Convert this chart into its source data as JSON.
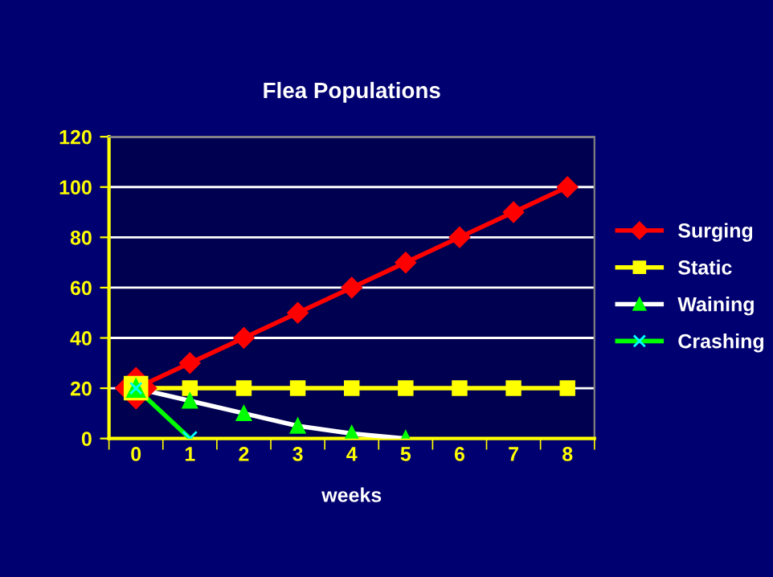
{
  "chart_data": {
    "type": "line",
    "title": "Flea Populations",
    "xlabel": "weeks",
    "categories": [
      "0",
      "1",
      "2",
      "3",
      "4",
      "5",
      "6",
      "7",
      "8"
    ],
    "ylim": [
      0,
      120
    ],
    "yticks": [
      0,
      20,
      40,
      60,
      80,
      100,
      120
    ],
    "grid": "y",
    "legend": "right",
    "series": [
      {
        "name": "Surging",
        "color": "#ff0000",
        "marker": "diamond",
        "values": [
          20,
          30,
          40,
          50,
          60,
          70,
          80,
          90,
          100
        ]
      },
      {
        "name": "Static",
        "color": "#ffff00",
        "marker": "square",
        "values": [
          20,
          20,
          20,
          20,
          20,
          20,
          20,
          20,
          20
        ]
      },
      {
        "name": "Waining",
        "color": "#ffffff",
        "colors": [
          "#00ff00",
          "#00ff00",
          "#00ff00",
          "#00ff00",
          "#00ff00",
          "#00ff00",
          null,
          null,
          null
        ],
        "marker": "triangle",
        "values": [
          20,
          15,
          10,
          5,
          2,
          0,
          null,
          null,
          null
        ]
      },
      {
        "name": "Crashing",
        "color": "#00ff00",
        "colors": [
          "#00ffff",
          "#00ffff",
          null,
          null,
          null,
          null,
          null,
          null,
          null
        ],
        "marker": "cross",
        "values": [
          20,
          0,
          null,
          null,
          null,
          null,
          null,
          null,
          null
        ]
      }
    ]
  }
}
